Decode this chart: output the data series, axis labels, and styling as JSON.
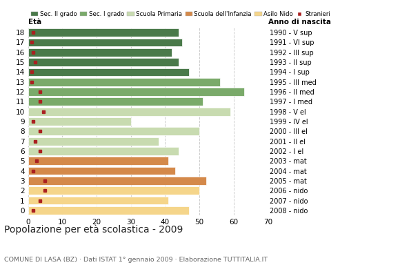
{
  "ages": [
    18,
    17,
    16,
    15,
    14,
    13,
    12,
    11,
    10,
    9,
    8,
    7,
    6,
    5,
    4,
    3,
    2,
    1,
    0
  ],
  "years": [
    "1990 - V sup",
    "1991 - VI sup",
    "1992 - III sup",
    "1993 - II sup",
    "1994 - I sup",
    "1995 - III med",
    "1996 - II med",
    "1997 - I med",
    "1998 - V el",
    "1999 - IV el",
    "2000 - III el",
    "2001 - II el",
    "2002 - I el",
    "2003 - mat",
    "2004 - mat",
    "2005 - mat",
    "2006 - nido",
    "2007 - nido",
    "2008 - nido"
  ],
  "bar_values": [
    44,
    45,
    42,
    44,
    47,
    56,
    63,
    51,
    59,
    30,
    50,
    38,
    44,
    41,
    43,
    52,
    50,
    41,
    47
  ],
  "stranieri": [
    1.5,
    1.0,
    1.5,
    2.0,
    1.0,
    1.0,
    3.5,
    3.5,
    4.5,
    1.5,
    3.5,
    2.0,
    3.5,
    2.5,
    1.5,
    5.0,
    5.0,
    3.5,
    1.5
  ],
  "categories": {
    "sec2": [
      18,
      17,
      16,
      15,
      14
    ],
    "sec1": [
      13,
      12,
      11
    ],
    "primaria": [
      10,
      9,
      8,
      7,
      6
    ],
    "infanzia": [
      5,
      4,
      3
    ],
    "nido": [
      2,
      1,
      0
    ]
  },
  "colors": {
    "sec2": "#4a7a4a",
    "sec1": "#7aaa6a",
    "primaria": "#c8dbb0",
    "infanzia": "#d4894a",
    "nido": "#f5d58a",
    "stranieri": "#aa2020"
  },
  "legend_labels": [
    "Sec. II grado",
    "Sec. I grado",
    "Scuola Primaria",
    "Scuola dell'Infanzia",
    "Asilo Nido",
    "Stranieri"
  ],
  "title": "Popolazione per età scolastica - 2009",
  "subtitle": "COMUNE DI LASA (BZ) · Dati ISTAT 1° gennaio 2009 · Elaborazione TUTTITALIA.IT",
  "xlabel_left": "Età",
  "xlabel_right": "Anno di nascita",
  "xlim": [
    0,
    70
  ],
  "xticks": [
    0,
    10,
    20,
    30,
    40,
    50,
    60,
    70
  ],
  "background_color": "#ffffff",
  "grid_color": "#cccccc"
}
